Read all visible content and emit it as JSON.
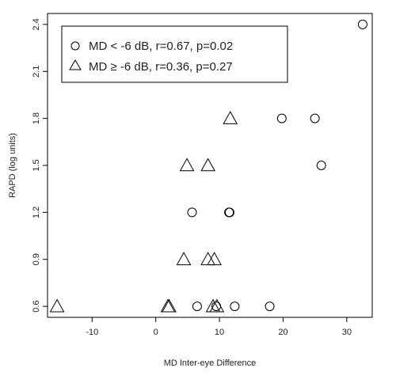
{
  "chart_data": {
    "type": "scatter",
    "xlabel": "MD Inter-eye Difference",
    "ylabel": "RAPD (log units)",
    "xlim": [
      -17,
      34
    ],
    "ylim": [
      0.53,
      2.47
    ],
    "x_ticks": [
      -10,
      0,
      10,
      20,
      30
    ],
    "y_ticks": [
      0.6,
      0.9,
      1.2,
      1.5,
      1.8,
      2.1,
      2.4
    ],
    "x_tick_labels": [
      "-10",
      "0",
      "10",
      "20",
      "30"
    ],
    "y_tick_labels": [
      "0.6",
      "0.9",
      "1.2",
      "1.5",
      "1.8",
      "2.1",
      "2.4"
    ],
    "grid": false,
    "legend_position": "top-left",
    "series": [
      {
        "name": "MD < -6 dB, r=0.67, p=0.02",
        "marker": "circle",
        "points": [
          {
            "x": 32.5,
            "y": 2.4
          },
          {
            "x": 19.8,
            "y": 1.8
          },
          {
            "x": 25.0,
            "y": 1.8
          },
          {
            "x": 26.0,
            "y": 1.5
          },
          {
            "x": 5.7,
            "y": 1.2
          },
          {
            "x": 11.5,
            "y": 1.2
          },
          {
            "x": 11.6,
            "y": 1.2
          },
          {
            "x": 6.5,
            "y": 0.6
          },
          {
            "x": 9.5,
            "y": 0.6
          },
          {
            "x": 12.4,
            "y": 0.6
          },
          {
            "x": 17.9,
            "y": 0.6
          }
        ]
      },
      {
        "name": "MD ≥ -6 dB, r=0.36, p=0.27",
        "marker": "triangle",
        "points": [
          {
            "x": -15.5,
            "y": 0.6
          },
          {
            "x": 1.9,
            "y": 0.6
          },
          {
            "x": 2.1,
            "y": 0.6
          },
          {
            "x": 9.0,
            "y": 0.6
          },
          {
            "x": 9.6,
            "y": 0.6
          },
          {
            "x": 4.4,
            "y": 0.9
          },
          {
            "x": 8.2,
            "y": 0.9
          },
          {
            "x": 9.2,
            "y": 0.9
          },
          {
            "x": 4.9,
            "y": 1.5
          },
          {
            "x": 8.2,
            "y": 1.5
          },
          {
            "x": 11.7,
            "y": 1.8
          }
        ]
      }
    ]
  }
}
